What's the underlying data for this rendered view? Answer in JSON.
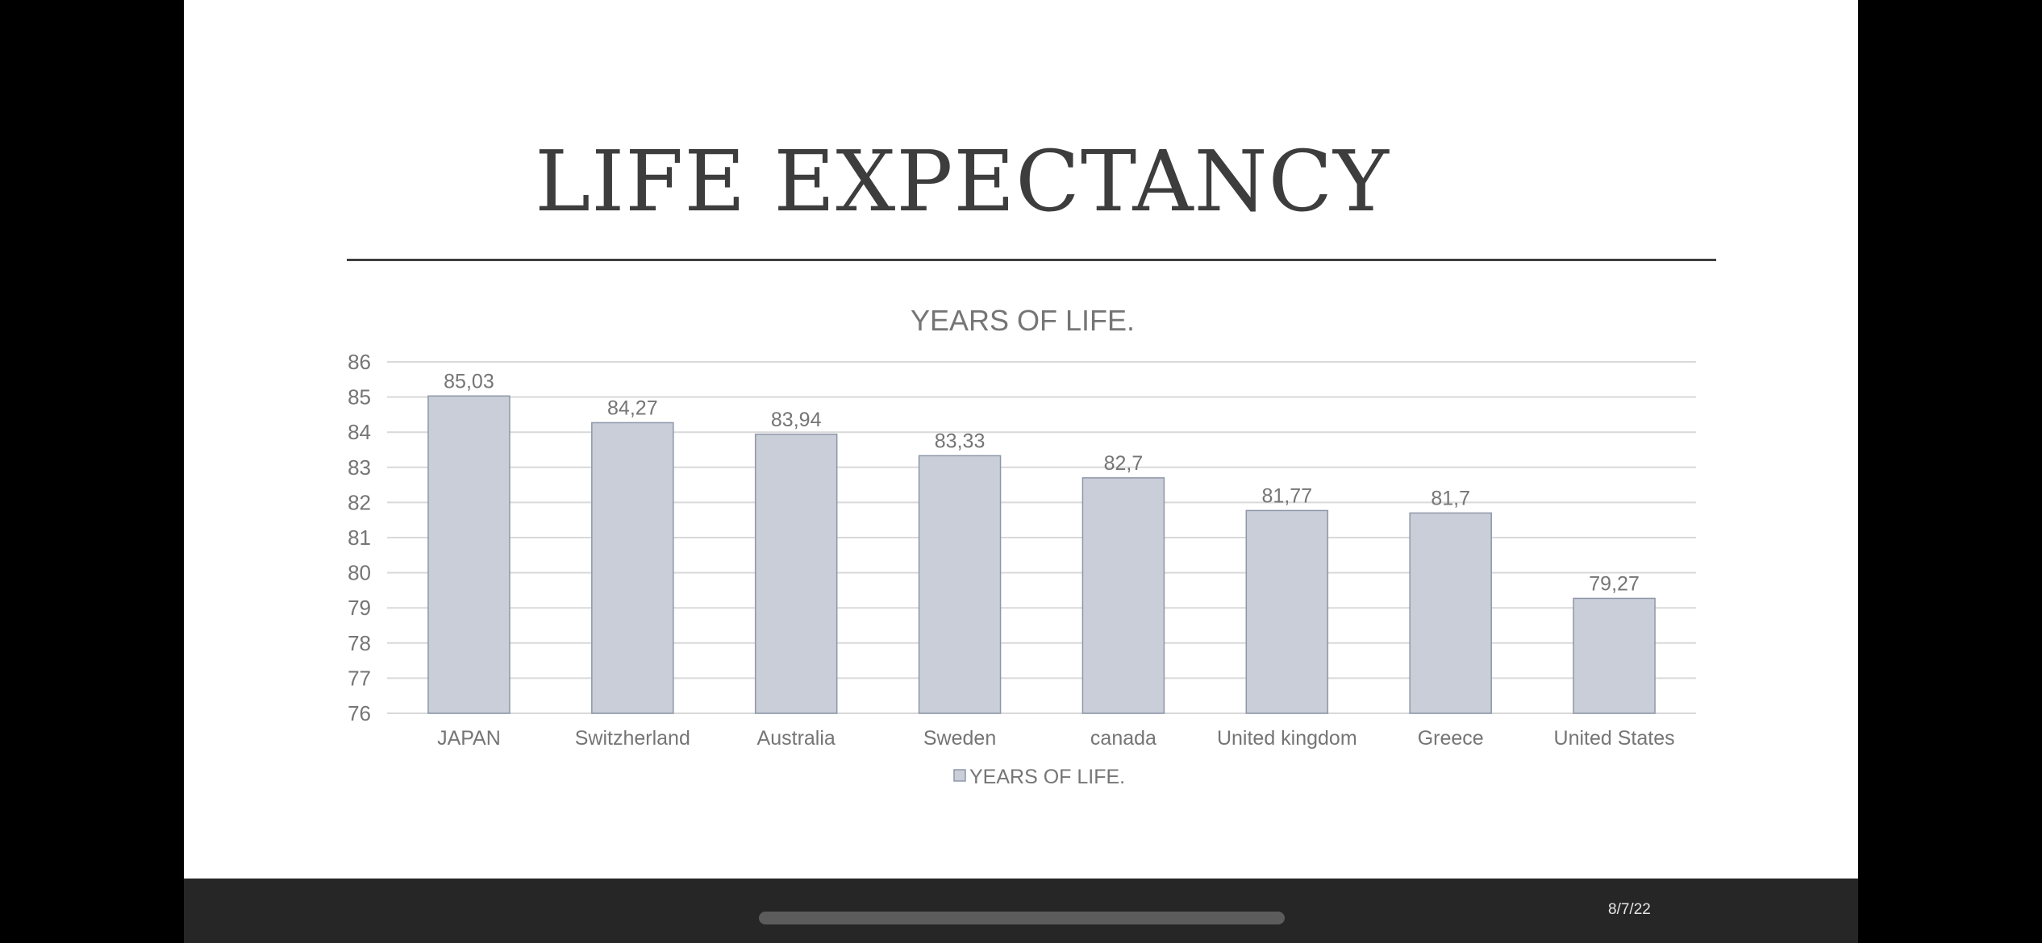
{
  "slide": {
    "title": "LIFE EXPECTANCY",
    "date": "8/7/22"
  },
  "colors": {
    "bar_fill": "#c9ced8",
    "bar_stroke": "#8e97a8",
    "grid": "#d9d9d9",
    "text": "#757575",
    "title": "#3d3d3d",
    "bottom_bar": "#262626"
  },
  "chart_data": {
    "type": "bar",
    "title": "YEARS OF LIFE.",
    "categories": [
      "JAPAN",
      "Switzherland",
      "Australia",
      "Sweden",
      "canada",
      "United kingdom",
      "Greece",
      "United States"
    ],
    "series": [
      {
        "name": "YEARS OF LIFE.",
        "values": [
          85.03,
          84.27,
          83.94,
          83.33,
          82.7,
          81.77,
          81.7,
          79.27
        ],
        "labels": [
          "85,03",
          "84,27",
          "83,94",
          "83,33",
          "82,7",
          "81,77",
          "81,7",
          "79,27"
        ]
      }
    ],
    "ylim": [
      76,
      86
    ],
    "yticks": [
      "76",
      "77",
      "78",
      "79",
      "80",
      "81",
      "82",
      "83",
      "84",
      "85",
      "86"
    ],
    "xlabel": "",
    "ylabel": "",
    "grid": true,
    "legend": "bottom"
  }
}
